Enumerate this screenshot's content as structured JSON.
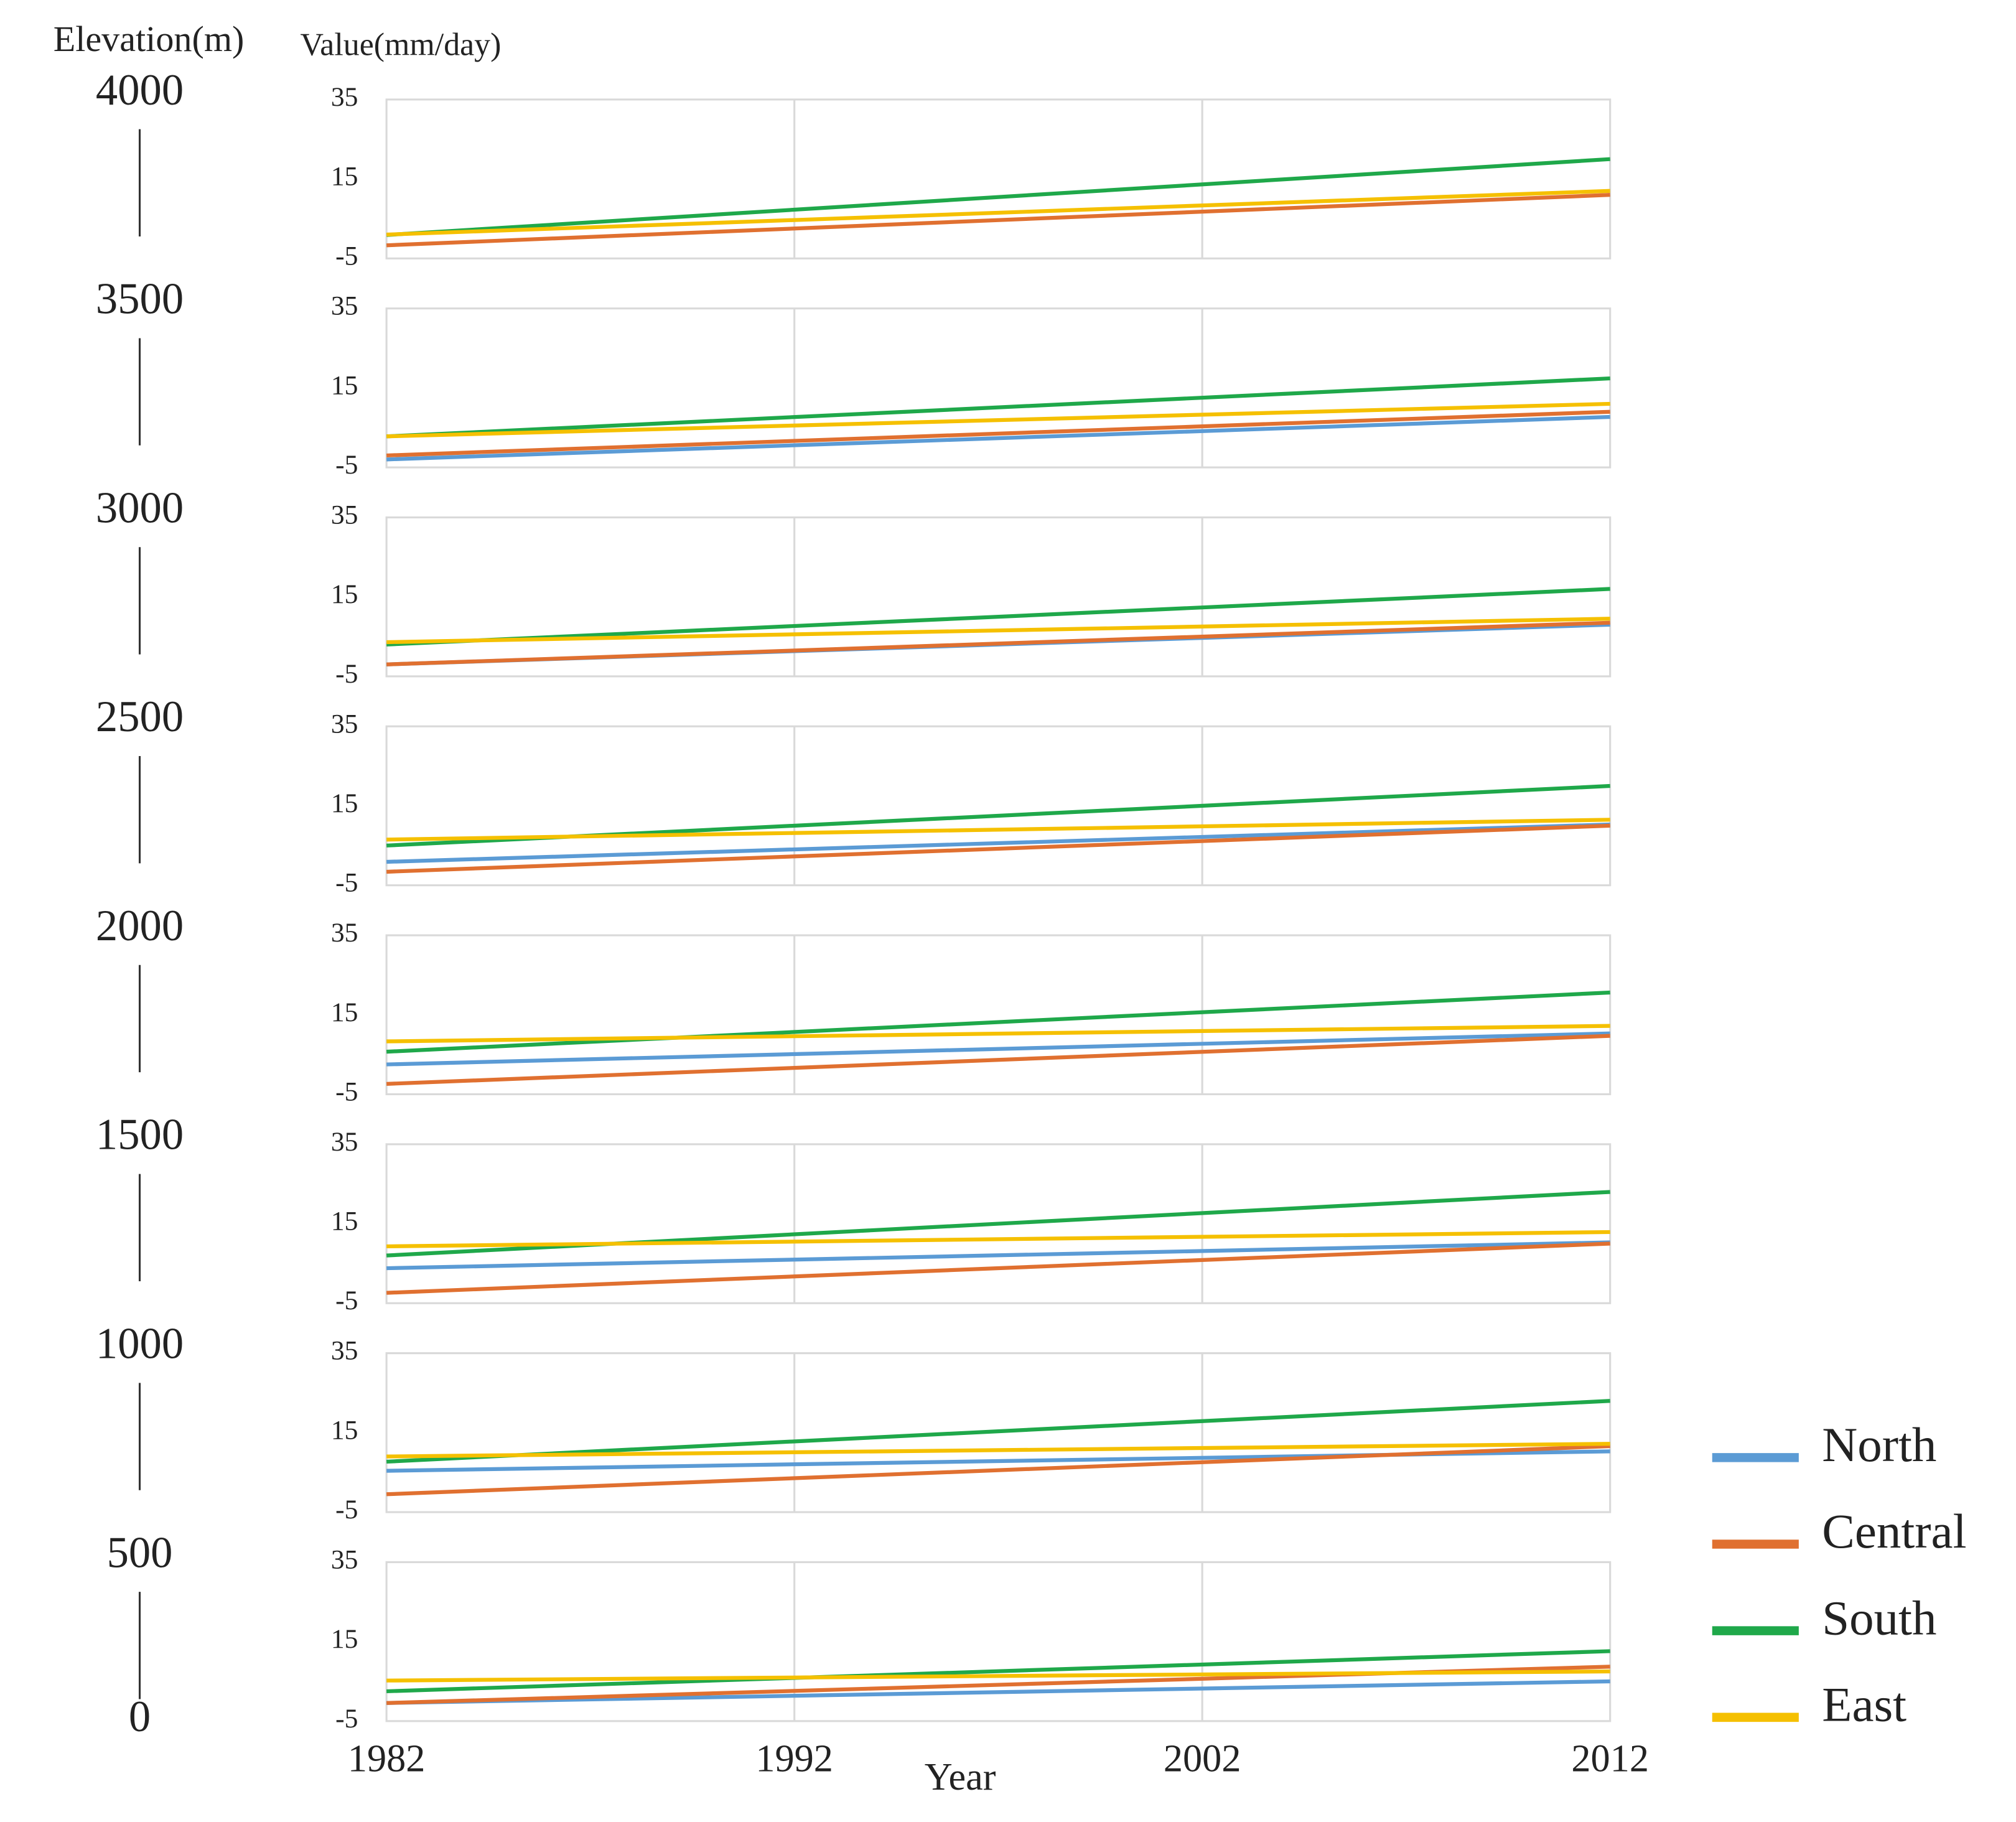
{
  "chart_data": {
    "type": "line",
    "elevation_label": "Elevation(m)",
    "y_label": "Value(mm/day)",
    "x_label": "Year",
    "elevation_ticks": [
      4000,
      3500,
      3000,
      2500,
      2000,
      1500,
      1000,
      500,
      0
    ],
    "x": [
      1982,
      2012
    ],
    "xlim": [
      1982,
      2012
    ],
    "xticks": [
      1982,
      1992,
      2002,
      2012
    ],
    "ylim": [
      -5,
      35
    ],
    "yticks": [
      -5,
      15,
      35
    ],
    "grid": true,
    "series": [
      {
        "name": "North",
        "color": "#5b9bd5"
      },
      {
        "name": "Central",
        "color": "#e07030"
      },
      {
        "name": "South",
        "color": "#1fa84a"
      },
      {
        "name": "East",
        "color": "#f5c000"
      }
    ],
    "panels": [
      {
        "series": [
          [
            null,
            null
          ],
          [
            -1.7,
            11
          ],
          [
            0.9,
            20
          ],
          [
            1,
            12
          ]
        ]
      },
      {
        "series": [
          [
            -3,
            7.7
          ],
          [
            -2,
            9
          ],
          [
            2.8,
            17.4
          ],
          [
            2.8,
            11
          ]
        ]
      },
      {
        "series": [
          [
            -2,
            8
          ],
          [
            -2,
            8.5
          ],
          [
            3,
            17
          ],
          [
            3.6,
            9.5
          ]
        ]
      },
      {
        "series": [
          [
            0.9,
            10.3
          ],
          [
            -1.6,
            10
          ],
          [
            5,
            20
          ],
          [
            6.5,
            11.5
          ]
        ]
      },
      {
        "series": [
          [
            2.5,
            10.3
          ],
          [
            -2.4,
            9.7
          ],
          [
            5.7,
            20.6
          ],
          [
            8.3,
            12.2
          ]
        ]
      },
      {
        "series": [
          [
            3.8,
            10.3
          ],
          [
            -2.4,
            10
          ],
          [
            7,
            23
          ],
          [
            9.3,
            12.9
          ]
        ]
      },
      {
        "series": [
          [
            5.4,
            10.3
          ],
          [
            -0.5,
            11.6
          ],
          [
            7.7,
            23
          ],
          [
            9,
            12.2
          ]
        ]
      },
      {
        "series": [
          [
            -0.45,
            5
          ],
          [
            -0.45,
            8.7
          ],
          [
            2.5,
            12.6
          ],
          [
            5.2,
            7.5
          ]
        ]
      }
    ]
  }
}
